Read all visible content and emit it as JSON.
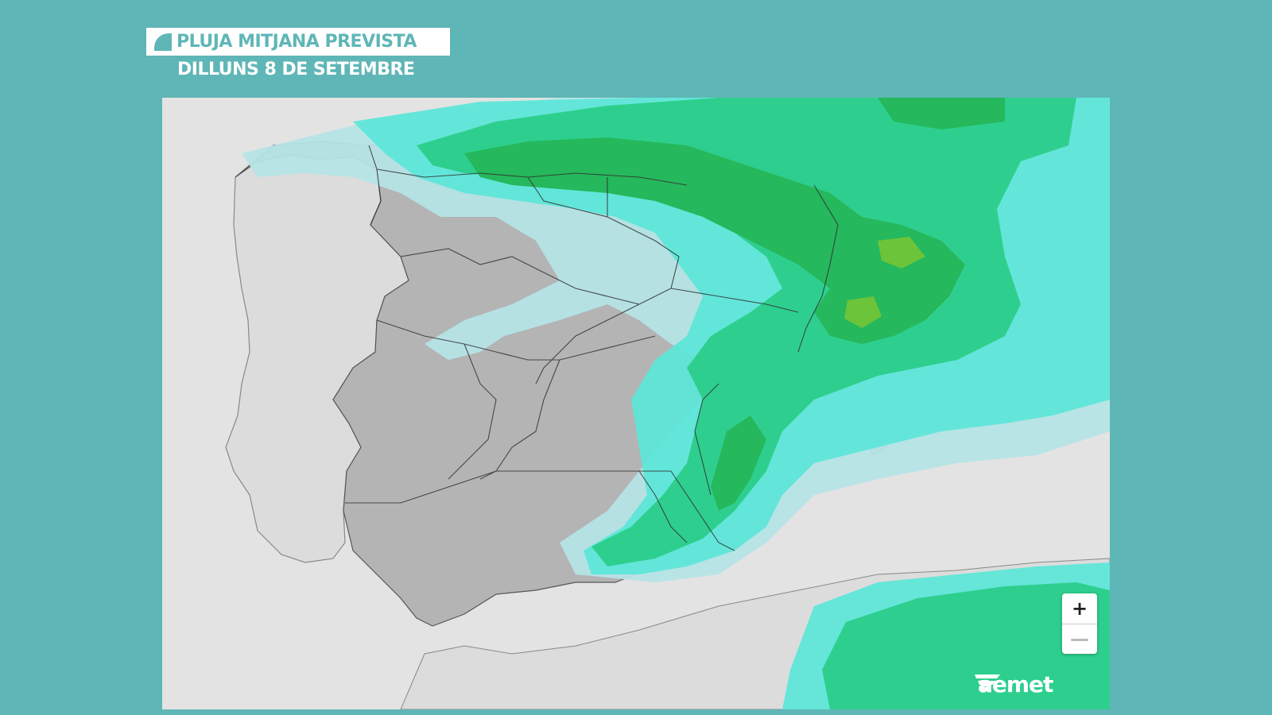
{
  "header": {
    "title": "PLUJA MITJANA PREVISTA",
    "subtitle": "DILLUNS 8 DE SETEMBRE"
  },
  "map": {
    "zoom_in_label": "+",
    "zoom_out_label": "—",
    "logo_text": "aemet"
  },
  "colors": {
    "background": "#5fb6b6",
    "rain_light": "#b5e4e6",
    "rain_low": "#5ee6d8",
    "rain_medium": "#2ecf8e",
    "rain_high": "#25b85c",
    "rain_max": "#6cc43a",
    "land": "#b8b8b8",
    "sea": "#e3e3e3"
  }
}
